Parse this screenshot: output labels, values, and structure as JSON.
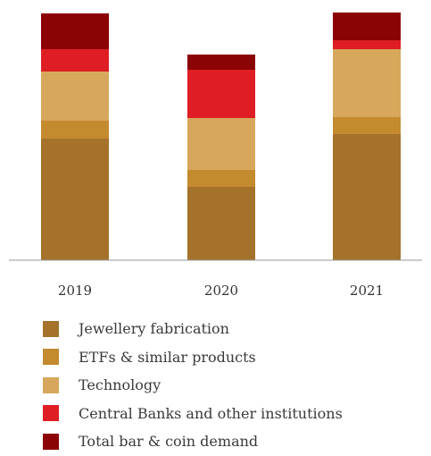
{
  "chart_data": {
    "type": "bar",
    "stacked": true,
    "categories": [
      "2019",
      "2020",
      "2021"
    ],
    "series": [
      {
        "name": "Jewellery fabrication",
        "color": "#a4722b",
        "values": [
          136,
          82,
          141
        ]
      },
      {
        "name": "ETFs & similar products",
        "color": "#c48a2e",
        "values": [
          20,
          19,
          19
        ]
      },
      {
        "name": "Technology",
        "color": "#d7a75c",
        "values": [
          55,
          58,
          76
        ]
      },
      {
        "name": "Central Banks and other institutions",
        "color": "#de1e24",
        "values": [
          25,
          54,
          10
        ]
      },
      {
        "name": "Total bar & coin demand",
        "color": "#8b0304",
        "values": [
          40,
          17,
          31
        ]
      }
    ],
    "title": "",
    "xlabel": "",
    "ylabel": "",
    "ylim": [
      0,
      280
    ],
    "grid": false,
    "legend_position": "bottom"
  }
}
